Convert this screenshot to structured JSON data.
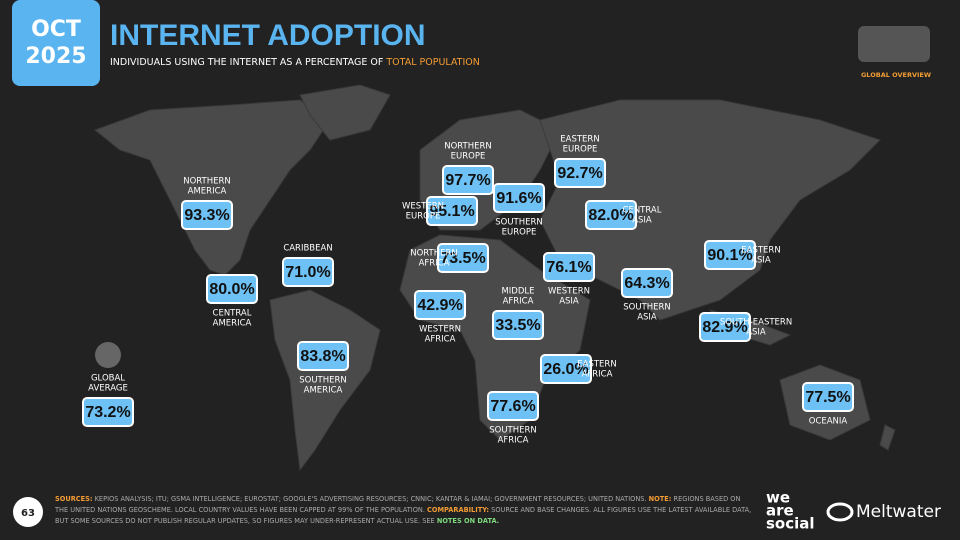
{
  "header": {
    "month": "OCT",
    "year": "2025",
    "title": "INTERNET ADOPTION",
    "subtitle": "INDIVIDUALS USING THE INTERNET AS A PERCENTAGE OF",
    "subtitle_highlight": "TOTAL POPULATION",
    "section": "GLOBAL OVERVIEW"
  },
  "regions": [
    {
      "name": [
        "NORTHERN",
        "AMERICA"
      ],
      "value": "93.3%"
    },
    {
      "name": [
        "CENTRAL",
        "AMERICA"
      ],
      "value": "80.0%"
    },
    {
      "name": [
        "CARIBBEAN"
      ],
      "value": "71.0%"
    },
    {
      "name": [
        "SOUTHERN",
        "AMERICA"
      ],
      "value": "83.8%"
    },
    {
      "name": [
        "NORTHERN",
        "EUROPE"
      ],
      "value": "97.7%"
    },
    {
      "name": [
        "WESTERN",
        "EUROPE"
      ],
      "value": "95.1%"
    },
    {
      "name": [
        "SOUTHERN",
        "EUROPE"
      ],
      "value": "91.6%"
    },
    {
      "name": [
        "EASTERN",
        "EUROPE"
      ],
      "value": "92.7%"
    },
    {
      "name": [
        "CENTRAL",
        "ASIA"
      ],
      "value": "82.0%"
    },
    {
      "name": [
        "NORTHERN",
        "AFRICA"
      ],
      "value": "73.5%"
    },
    {
      "name": [
        "WESTERN",
        "AFRICA"
      ],
      "value": "42.9%"
    },
    {
      "name": [
        "MIDDLE",
        "AFRICA"
      ],
      "value": "33.5%"
    },
    {
      "name": [
        "WESTERN",
        "ASIA"
      ],
      "value": "76.1%"
    },
    {
      "name": [
        "SOUTHERN",
        "ASIA"
      ],
      "value": "64.3%"
    },
    {
      "name": [
        "EASTERN",
        "ASIA"
      ],
      "value": "90.1%"
    },
    {
      "name": [
        "SOUTH-EASTERN",
        "ASIA"
      ],
      "value": "82.9%"
    },
    {
      "name": [
        "EASTERN",
        "AFRICA"
      ],
      "value": "26.0%"
    },
    {
      "name": [
        "SOUTHERN",
        "AFRICA"
      ],
      "value": "77.6%"
    },
    {
      "name": [
        "OCEANIA"
      ],
      "value": "77.5%"
    }
  ],
  "global": {
    "name": [
      "GLOBAL",
      "AVERAGE"
    ],
    "value": "73.2%"
  },
  "footer": {
    "page": "63",
    "lines": [
      [
        {
          "text": "SOURCES:",
          "style": "key"
        },
        {
          "text": " KEPIOS ANALYSIS; ITU; GSMA INTELLIGENCE; EUROSTAT; GOOGLE'S ADVERTISING RESOURCES; CNNIC; KANTAR & IAMAI; GOVERNMENT RESOURCES; UNITED NATIONS. ",
          "style": "plain"
        },
        {
          "text": "NOTE:",
          "style": "key"
        },
        {
          "text": " REGIONS BASED ON",
          "style": "plain"
        }
      ],
      [
        {
          "text": "THE UNITED NATIONS GEOSCHEME. LOCAL COUNTRY VALUES HAVE BEEN CAPPED AT 99% OF THE POPULATION. ",
          "style": "plain"
        },
        {
          "text": "COMPARABILITY:",
          "style": "key"
        },
        {
          "text": " SOURCE AND BASE CHANGES. ALL FIGURES USE THE LATEST AVAILABLE DATA,",
          "style": "plain"
        }
      ],
      [
        {
          "text": "BUT SOME SOURCES DO NOT PUBLISH REGULAR UPDATES, SO FIGURES MAY UNDER-REPRESENT ACTUAL USE. SEE ",
          "style": "plain"
        },
        {
          "text": "NOTES ON DATA.",
          "style": "link"
        }
      ]
    ],
    "brand_1": [
      "we",
      "are",
      "social"
    ],
    "brand_2": "Meltwater"
  }
}
